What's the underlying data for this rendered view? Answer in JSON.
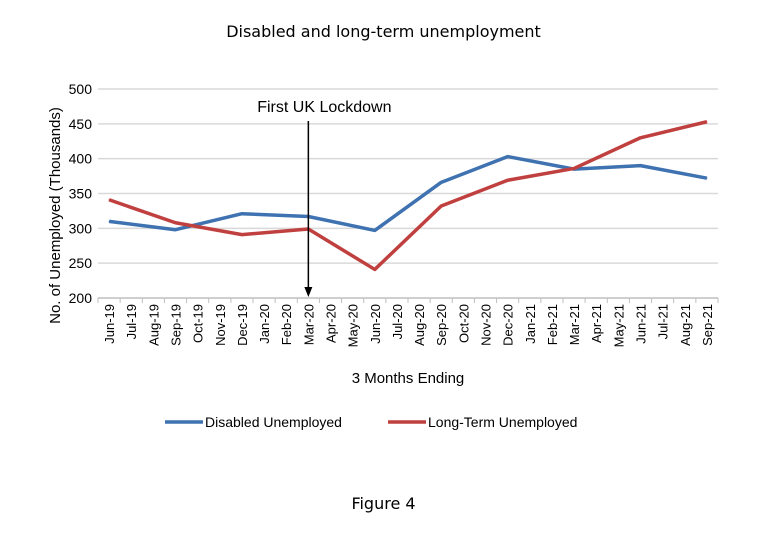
{
  "chart_data": {
    "type": "line",
    "title": "Disabled and long-term unemployment",
    "xlabel": "3 Months Ending",
    "ylabel": "No. of Unemployed (Thousands)",
    "ylim": [
      200,
      500
    ],
    "yticks": [
      200,
      250,
      300,
      350,
      400,
      450,
      500
    ],
    "grid": true,
    "legend_position": "bottom",
    "categories": [
      "Jun-19",
      "Jul-19",
      "Aug-19",
      "Sep-19",
      "Oct-19",
      "Nov-19",
      "Dec-19",
      "Jan-20",
      "Feb-20",
      "Mar-20",
      "Apr-20",
      "May-20",
      "Jun-20",
      "Jul-20",
      "Aug-20",
      "Sep-20",
      "Oct-20",
      "Nov-20",
      "Dec-20",
      "Jan-21",
      "Feb-21",
      "Mar-21",
      "Apr-21",
      "May-21",
      "Jun-21",
      "Jul-21",
      "Aug-21",
      "Sep-21"
    ],
    "series": [
      {
        "name": "Disabled Unemployed",
        "color": "#3f72b0",
        "x": [
          "Jun-19",
          "Sep-19",
          "Dec-19",
          "Mar-20",
          "Jun-20",
          "Sep-20",
          "Dec-20",
          "Mar-21",
          "Jun-21",
          "Sep-21"
        ],
        "values": [
          310,
          298,
          321,
          317,
          297,
          366,
          403,
          385,
          390,
          372
        ]
      },
      {
        "name": "Long-Term Unemployed",
        "color": "#c0403f",
        "x": [
          "Jun-19",
          "Sep-19",
          "Dec-19",
          "Mar-20",
          "Jun-20",
          "Sep-20",
          "Dec-20",
          "Mar-21",
          "Jun-21",
          "Sep-21"
        ],
        "values": [
          341,
          308,
          291,
          299,
          241,
          332,
          369,
          386,
          430,
          453
        ]
      }
    ],
    "annotations": [
      {
        "text": "First UK Lockdown",
        "x": "Mar-20",
        "arrow": "down"
      }
    ]
  },
  "figure_caption": "Figure 4"
}
